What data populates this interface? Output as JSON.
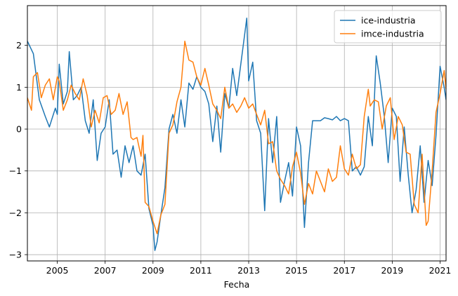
{
  "chart_data": {
    "type": "line",
    "title": "",
    "xlabel": "Fecha",
    "ylabel": "",
    "xlim": [
      2003.75,
      2021.25
    ],
    "ylim": [
      -3.15,
      2.95
    ],
    "x_ticks": [
      "2005",
      "2007",
      "2009",
      "2011",
      "2013",
      "2015",
      "2017",
      "2019",
      "2021"
    ],
    "y_ticks": [
      "−3",
      "−2",
      "−1",
      "0",
      "1",
      "2"
    ],
    "grid": true,
    "legend_position": "top-right",
    "series": [
      {
        "name": "ice-industria",
        "color": "#1f77b4",
        "x": [
          2003.75,
          2004.0,
          2004.25,
          2004.5,
          2004.67,
          2004.92,
          2005.0,
          2005.08,
          2005.25,
          2005.42,
          2005.5,
          2005.67,
          2005.83,
          2006.0,
          2006.17,
          2006.33,
          2006.5,
          2006.67,
          2006.83,
          2007.0,
          2007.17,
          2007.33,
          2007.5,
          2007.67,
          2007.83,
          2008.0,
          2008.17,
          2008.33,
          2008.5,
          2008.67,
          2008.83,
          2009.0,
          2009.08,
          2009.17,
          2009.33,
          2009.5,
          2009.67,
          2009.83,
          2010.0,
          2010.17,
          2010.33,
          2010.5,
          2010.67,
          2010.83,
          2011.0,
          2011.17,
          2011.33,
          2011.5,
          2011.67,
          2011.83,
          2012.0,
          2012.17,
          2012.33,
          2012.5,
          2012.67,
          2012.83,
          2012.92,
          2013.0,
          2013.17,
          2013.33,
          2013.5,
          2013.67,
          2013.83,
          2014.0,
          2014.17,
          2014.33,
          2014.5,
          2014.67,
          2014.83,
          2015.0,
          2015.17,
          2015.33,
          2015.5,
          2015.67,
          2015.83,
          2016.0,
          2016.17,
          2016.33,
          2016.5,
          2016.67,
          2016.83,
          2017.0,
          2017.17,
          2017.33,
          2017.5,
          2017.67,
          2017.83,
          2018.0,
          2018.17,
          2018.33,
          2018.5,
          2018.67,
          2018.83,
          2019.0,
          2019.17,
          2019.33,
          2019.5,
          2019.67,
          2019.83,
          2020.0,
          2020.17,
          2020.33,
          2020.5,
          2020.67,
          2020.83,
          2021.0,
          2021.17,
          2021.25
        ],
        "values": [
          2.1,
          1.8,
          0.7,
          0.3,
          0.05,
          0.5,
          0.35,
          1.55,
          0.6,
          0.9,
          1.85,
          0.7,
          0.8,
          1.0,
          0.2,
          -0.1,
          0.7,
          -0.75,
          -0.1,
          0.05,
          0.7,
          -0.6,
          -0.5,
          -1.15,
          -0.4,
          -0.8,
          -0.4,
          -1.0,
          -1.1,
          -0.6,
          -1.9,
          -2.3,
          -2.9,
          -2.7,
          -2.05,
          -1.4,
          0.0,
          0.35,
          -0.1,
          0.7,
          0.05,
          1.1,
          0.95,
          1.25,
          1.0,
          0.9,
          0.6,
          -0.3,
          0.55,
          -0.55,
          0.85,
          0.5,
          1.45,
          0.8,
          1.55,
          2.25,
          2.65,
          1.15,
          1.6,
          0.2,
          -0.1,
          -1.95,
          0.25,
          -0.8,
          0.3,
          -1.75,
          -1.25,
          -0.8,
          -1.6,
          0.05,
          -0.4,
          -2.35,
          -0.8,
          0.2,
          0.2,
          0.2,
          0.27,
          0.25,
          0.22,
          0.3,
          0.2,
          0.25,
          0.2,
          -1.0,
          -0.9,
          -1.1,
          -0.9,
          0.3,
          -0.4,
          1.75,
          1.1,
          0.3,
          -0.8,
          0.5,
          0.3,
          -1.25,
          0.05,
          -1.1,
          -2.0,
          -1.45,
          -0.4,
          -1.75,
          -0.75,
          -1.35,
          -0.15,
          1.5,
          1.0,
          0.7
        ]
      },
      {
        "name": "imce-industria",
        "color": "#ff7f0e",
        "x": [
          2003.75,
          2003.92,
          2004.0,
          2004.17,
          2004.33,
          2004.5,
          2004.67,
          2004.83,
          2005.0,
          2005.08,
          2005.25,
          2005.42,
          2005.58,
          2005.75,
          2005.92,
          2006.08,
          2006.25,
          2006.42,
          2006.58,
          2006.75,
          2006.92,
          2007.08,
          2007.25,
          2007.42,
          2007.58,
          2007.75,
          2007.92,
          2008.08,
          2008.17,
          2008.33,
          2008.5,
          2008.58,
          2008.67,
          2008.83,
          2009.0,
          2009.17,
          2009.33,
          2009.5,
          2009.67,
          2009.83,
          2010.0,
          2010.17,
          2010.33,
          2010.5,
          2010.67,
          2010.83,
          2011.0,
          2011.17,
          2011.33,
          2011.5,
          2011.67,
          2011.83,
          2012.0,
          2012.17,
          2012.33,
          2012.5,
          2012.67,
          2012.83,
          2013.0,
          2013.17,
          2013.33,
          2013.5,
          2013.67,
          2013.83,
          2014.0,
          2014.17,
          2014.33,
          2014.5,
          2014.67,
          2014.83,
          2015.0,
          2015.17,
          2015.33,
          2015.5,
          2015.67,
          2015.83,
          2016.0,
          2016.17,
          2016.33,
          2016.5,
          2016.67,
          2016.83,
          2017.0,
          2017.17,
          2017.33,
          2017.5,
          2017.67,
          2017.83,
          2018.0,
          2018.08,
          2018.25,
          2018.42,
          2018.58,
          2018.75,
          2018.92,
          2019.08,
          2019.25,
          2019.42,
          2019.58,
          2019.75,
          2019.92,
          2020.08,
          2020.25,
          2020.42,
          2020.5,
          2020.67,
          2020.83,
          2021.0,
          2021.17,
          2021.25
        ],
        "values": [
          0.75,
          0.45,
          1.25,
          1.35,
          0.75,
          1.05,
          1.2,
          0.7,
          1.25,
          1.15,
          0.45,
          0.7,
          1.05,
          0.85,
          0.7,
          1.2,
          0.8,
          0.05,
          0.45,
          0.15,
          0.75,
          0.8,
          0.35,
          0.45,
          0.85,
          0.35,
          0.65,
          -0.2,
          -0.25,
          -0.2,
          -0.65,
          -0.15,
          -1.75,
          -1.85,
          -2.2,
          -2.5,
          -2.05,
          -1.8,
          -0.1,
          0.1,
          0.65,
          1.0,
          2.1,
          1.65,
          1.6,
          1.25,
          1.05,
          1.45,
          1.05,
          0.6,
          0.45,
          0.25,
          1.0,
          0.5,
          0.6,
          0.4,
          0.55,
          0.75,
          0.5,
          0.6,
          0.35,
          0.1,
          0.45,
          -0.35,
          -0.3,
          -1.0,
          -1.2,
          -1.35,
          -1.55,
          -0.9,
          -0.55,
          -1.05,
          -1.8,
          -1.3,
          -1.55,
          -1.0,
          -1.25,
          -1.5,
          -0.95,
          -1.25,
          -1.15,
          -0.4,
          -0.95,
          -1.1,
          -0.6,
          -0.95,
          -0.85,
          0.3,
          0.95,
          0.55,
          0.7,
          0.65,
          0.0,
          0.55,
          0.75,
          -0.25,
          0.3,
          0.1,
          -0.55,
          -0.6,
          -1.8,
          -2.0,
          -0.6,
          -2.3,
          -2.2,
          -1.0,
          0.4,
          0.85,
          1.4,
          0.95
        ]
      }
    ]
  }
}
